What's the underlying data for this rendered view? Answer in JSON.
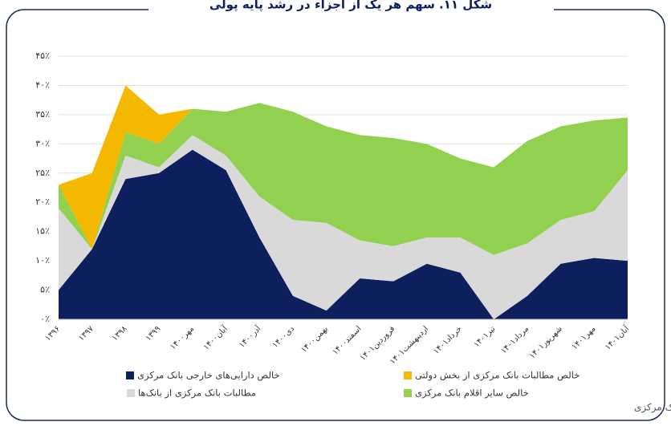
{
  "chart_data": {
    "type": "stacked_area",
    "title": "شکل ۱۱. سهم هر یک از اجزاء در رشد پایه پولی",
    "source": "منبع: بانک مرکزی",
    "categories": [
      "۱۳۹۶",
      "۱۳۹۷",
      "۱۳۹۸",
      "۱۳۹۹",
      "مهر۱۴۰۰",
      "آبان۱۴۰۰",
      "آذر۱۴۰۰",
      "دی۱۴۰۰",
      "بهمن۱۴۰۰",
      "اسفند۱۴۰۰",
      "فروردین۱۴۰۱",
      "اردیبهشت۱۴۰۱",
      "خرداد۱۴۰۱",
      "تیر۱۴۰۱",
      "مرداد۱۴۰۱",
      "شهریور۱۴۰۱",
      "مهر۱۴۰۱",
      "آبان۱۴۰۱"
    ],
    "series": [
      {
        "name": "خالص دارایی‌های خارجی بانک مرکزی",
        "color": "#0d1f5c",
        "values": [
          5,
          12,
          24,
          25,
          29,
          25.5,
          14,
          4,
          1.5,
          7,
          6.5,
          9.5,
          8,
          0,
          4,
          9.5,
          10.5,
          10
        ]
      },
      {
        "name": "مطالبات بانک مرکزی از بانک‌ها",
        "color": "#d9d9d9",
        "values": [
          14,
          0,
          4,
          1,
          2.5,
          2.5,
          7,
          13,
          15,
          6.5,
          6,
          4.5,
          6,
          11,
          9,
          7.5,
          8,
          15.5
        ]
      },
      {
        "name": "خالص سایر اقلام بانک مرکزی",
        "color": "#92d050",
        "values": [
          4,
          0,
          4,
          4,
          4.5,
          7.5,
          16,
          18.5,
          16.5,
          18,
          18.5,
          16,
          13.5,
          15,
          17.5,
          16,
          15.5,
          9
        ]
      },
      {
        "name": "خالص مطالبات بانک مرکزی از بخش دولتی",
        "color": "#f5b800",
        "values": [
          0,
          13,
          8,
          5,
          0,
          0,
          0,
          0,
          0,
          0,
          0,
          0,
          0,
          0,
          0,
          0,
          0,
          0
        ]
      }
    ],
    "ylim": [
      0,
      45
    ],
    "yticks": [
      {
        "value": 0,
        "label": "۰٪"
      },
      {
        "value": 5,
        "label": "۵٪"
      },
      {
        "value": 10,
        "label": "۱۰٪"
      },
      {
        "value": 15,
        "label": "۱۵٪"
      },
      {
        "value": 20,
        "label": "۲۰٪"
      },
      {
        "value": 25,
        "label": "۲۵٪"
      },
      {
        "value": 30,
        "label": "۳۰٪"
      },
      {
        "value": 35,
        "label": "۳۵٪"
      },
      {
        "value": 40,
        "label": "۴۰٪"
      },
      {
        "value": 45,
        "label": "۴۵٪"
      }
    ],
    "grid": true
  }
}
